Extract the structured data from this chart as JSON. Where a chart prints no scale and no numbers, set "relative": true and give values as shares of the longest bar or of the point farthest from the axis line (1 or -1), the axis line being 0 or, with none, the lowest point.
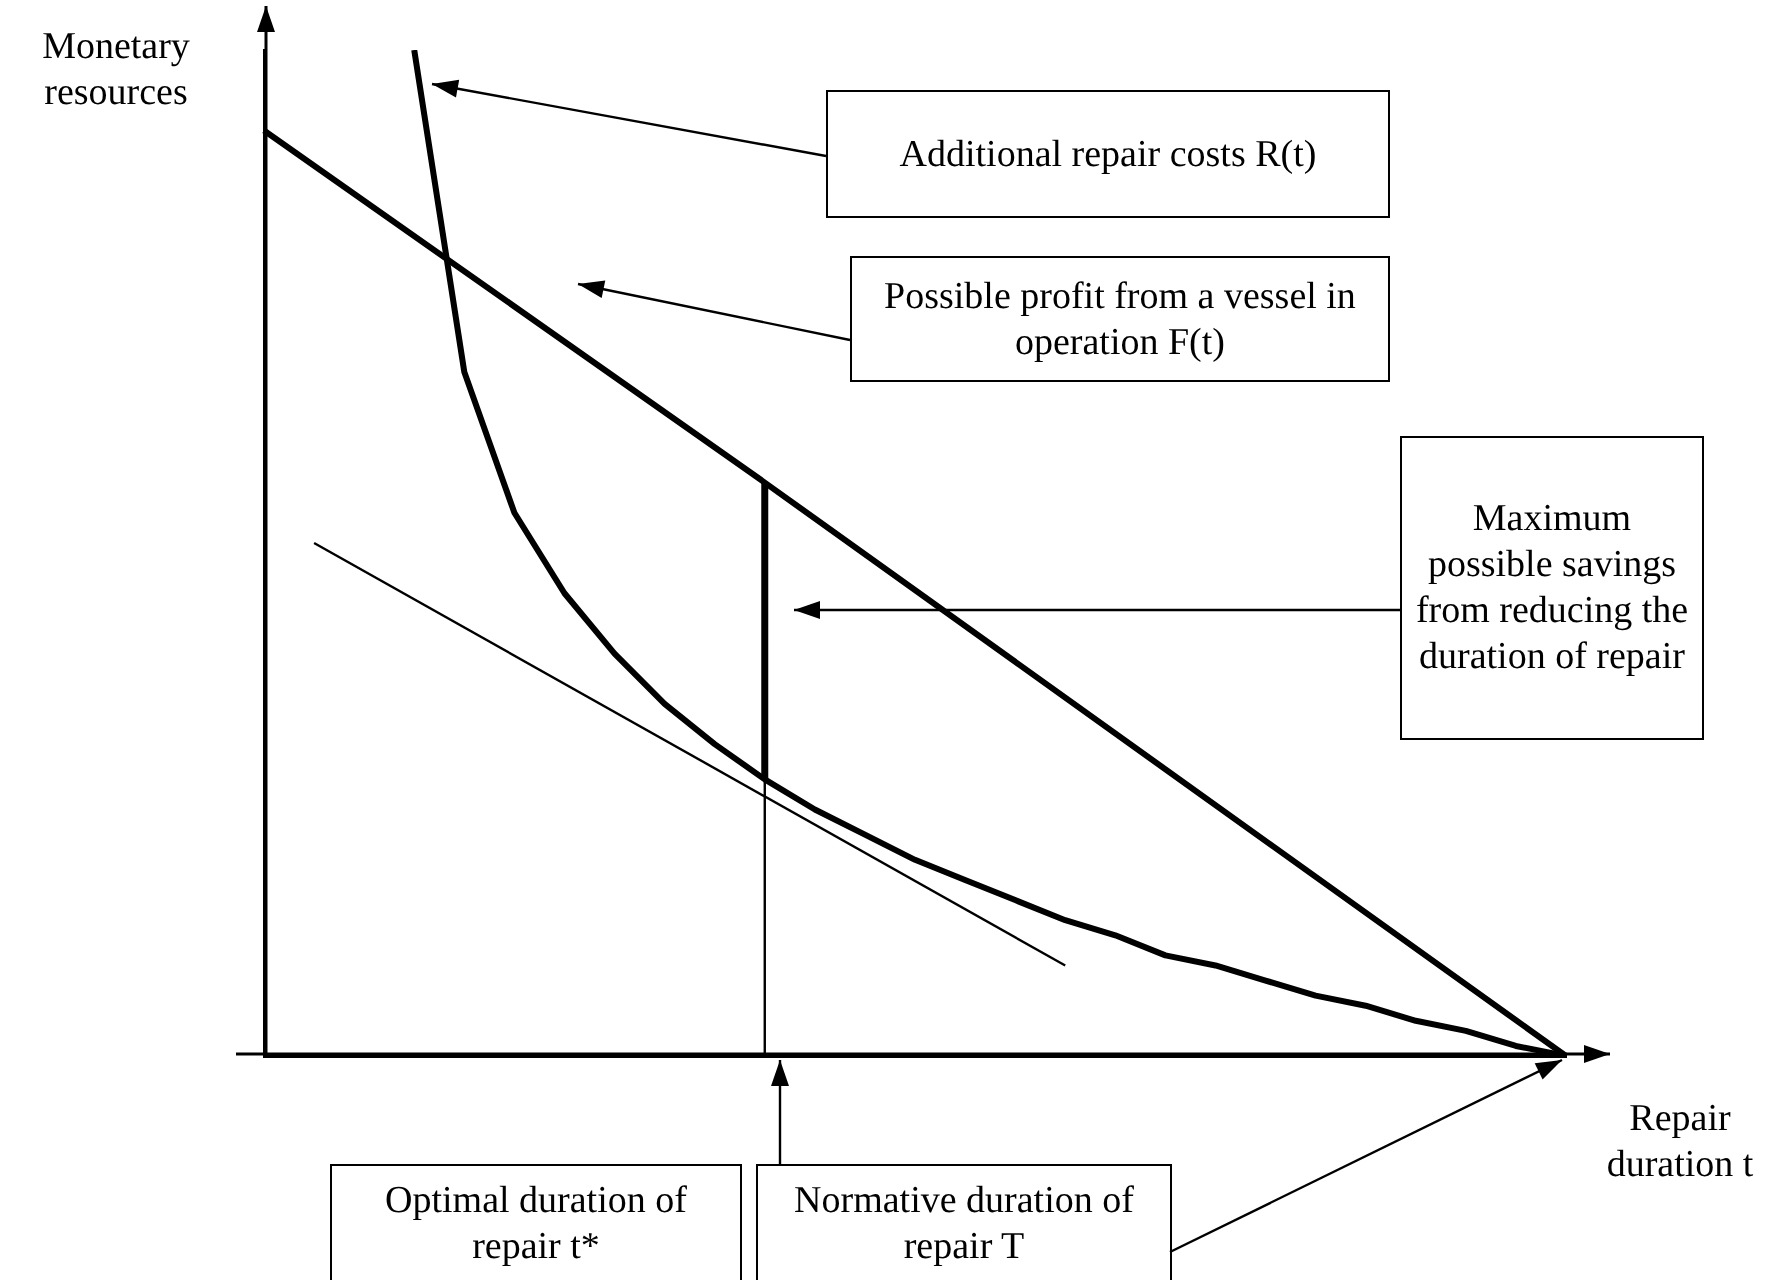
{
  "chart_data": {
    "type": "line",
    "relative": true,
    "xlabel": "Repair duration t",
    "ylabel": "Monetary resources",
    "categories": [
      null,
      null,
      null,
      null,
      null,
      null,
      null,
      null,
      null,
      null,
      null,
      null,
      null,
      null,
      null,
      null,
      null,
      null,
      null,
      null,
      null,
      null,
      null,
      null,
      null,
      null,
      null
    ],
    "series": [
      {
        "color": "#000000",
        "values": [
          0.92,
          null,
          null,
          null,
          null,
          null,
          null,
          null,
          null,
          null,
          0.57,
          null,
          null,
          null,
          null,
          null,
          null,
          null,
          null,
          null,
          null,
          null,
          null,
          null,
          null,
          null,
          0
        ]
      },
      {
        "color": "#000000",
        "values": [
          null,
          null,
          null,
          1,
          0.68,
          0.54,
          0.46,
          0.4,
          0.35,
          0.31,
          0.275,
          0.245,
          0.22,
          0.195,
          0.175,
          0.155,
          0.135,
          0.12,
          0.1,
          0.09,
          0.075,
          0.06,
          0.05,
          0.035,
          0.025,
          0.01,
          0
        ]
      },
      {
        "color": "#000000",
        "values": [
          null,
          0.51,
          null,
          null,
          null,
          null,
          null,
          null,
          null,
          null,
          null,
          null,
          null,
          null,
          null,
          null,
          0.09,
          null,
          null,
          null,
          null,
          null,
          null,
          null,
          null,
          null,
          null
        ]
      }
    ],
    "annotations": [
      "Additional repair costs R(t)",
      "Possible profit from a vessel in operation F(t)",
      "Maximum possible savings from reducing the duration of repair",
      "Optimal duration of repair t*",
      "Normative duration of repair T"
    ]
  }
}
